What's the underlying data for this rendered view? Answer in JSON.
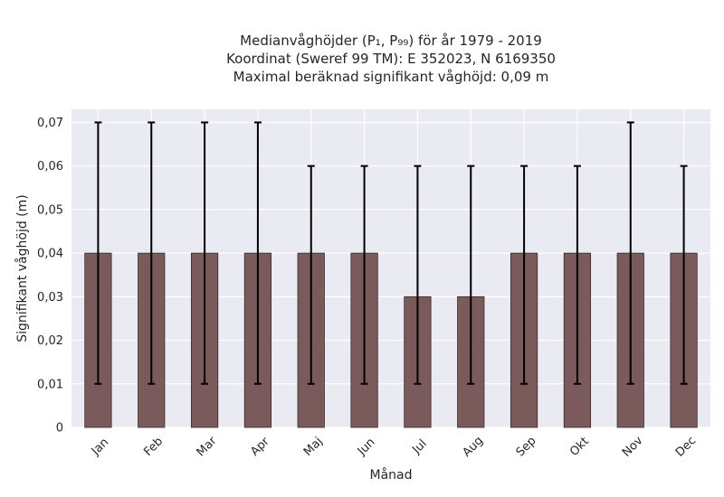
{
  "chart_data": {
    "type": "bar",
    "title_lines": [
      "Medianvåghöjder (P₁, P₉₉) för år 1979 - 2019",
      "Koordinat (Sweref 99 TM): E 352023, N 6169350",
      "Maximal beräknad signifikant våghöjd: 0,09 m"
    ],
    "xlabel": "Månad",
    "ylabel": "Signifikant våghöjd (m)",
    "ylim": [
      0,
      0.073
    ],
    "yticks": [
      0,
      0.01,
      0.02,
      0.03,
      0.04,
      0.05,
      0.06,
      0.07
    ],
    "ytick_labels": [
      "0",
      "0,01",
      "0,02",
      "0,03",
      "0,04",
      "0,05",
      "0,06",
      "0,07"
    ],
    "categories": [
      "Jan",
      "Feb",
      "Mar",
      "Apr",
      "Maj",
      "Jun",
      "Jul",
      "Aug",
      "Sep",
      "Okt",
      "Nov",
      "Dec"
    ],
    "values": [
      0.04,
      0.04,
      0.04,
      0.04,
      0.04,
      0.04,
      0.03,
      0.03,
      0.04,
      0.04,
      0.04,
      0.04
    ],
    "p1": [
      0.01,
      0.01,
      0.01,
      0.01,
      0.01,
      0.01,
      0.01,
      0.01,
      0.01,
      0.01,
      0.01,
      0.01
    ],
    "p99": [
      0.07,
      0.07,
      0.07,
      0.07,
      0.06,
      0.06,
      0.06,
      0.06,
      0.06,
      0.06,
      0.07,
      0.06
    ],
    "grid": true,
    "colors": {
      "bar": "#7b5a5b",
      "bar_edge": "#3a2a2a",
      "errorbar": "#000000",
      "background": "#eaeaf2",
      "grid": "#ffffff"
    }
  }
}
